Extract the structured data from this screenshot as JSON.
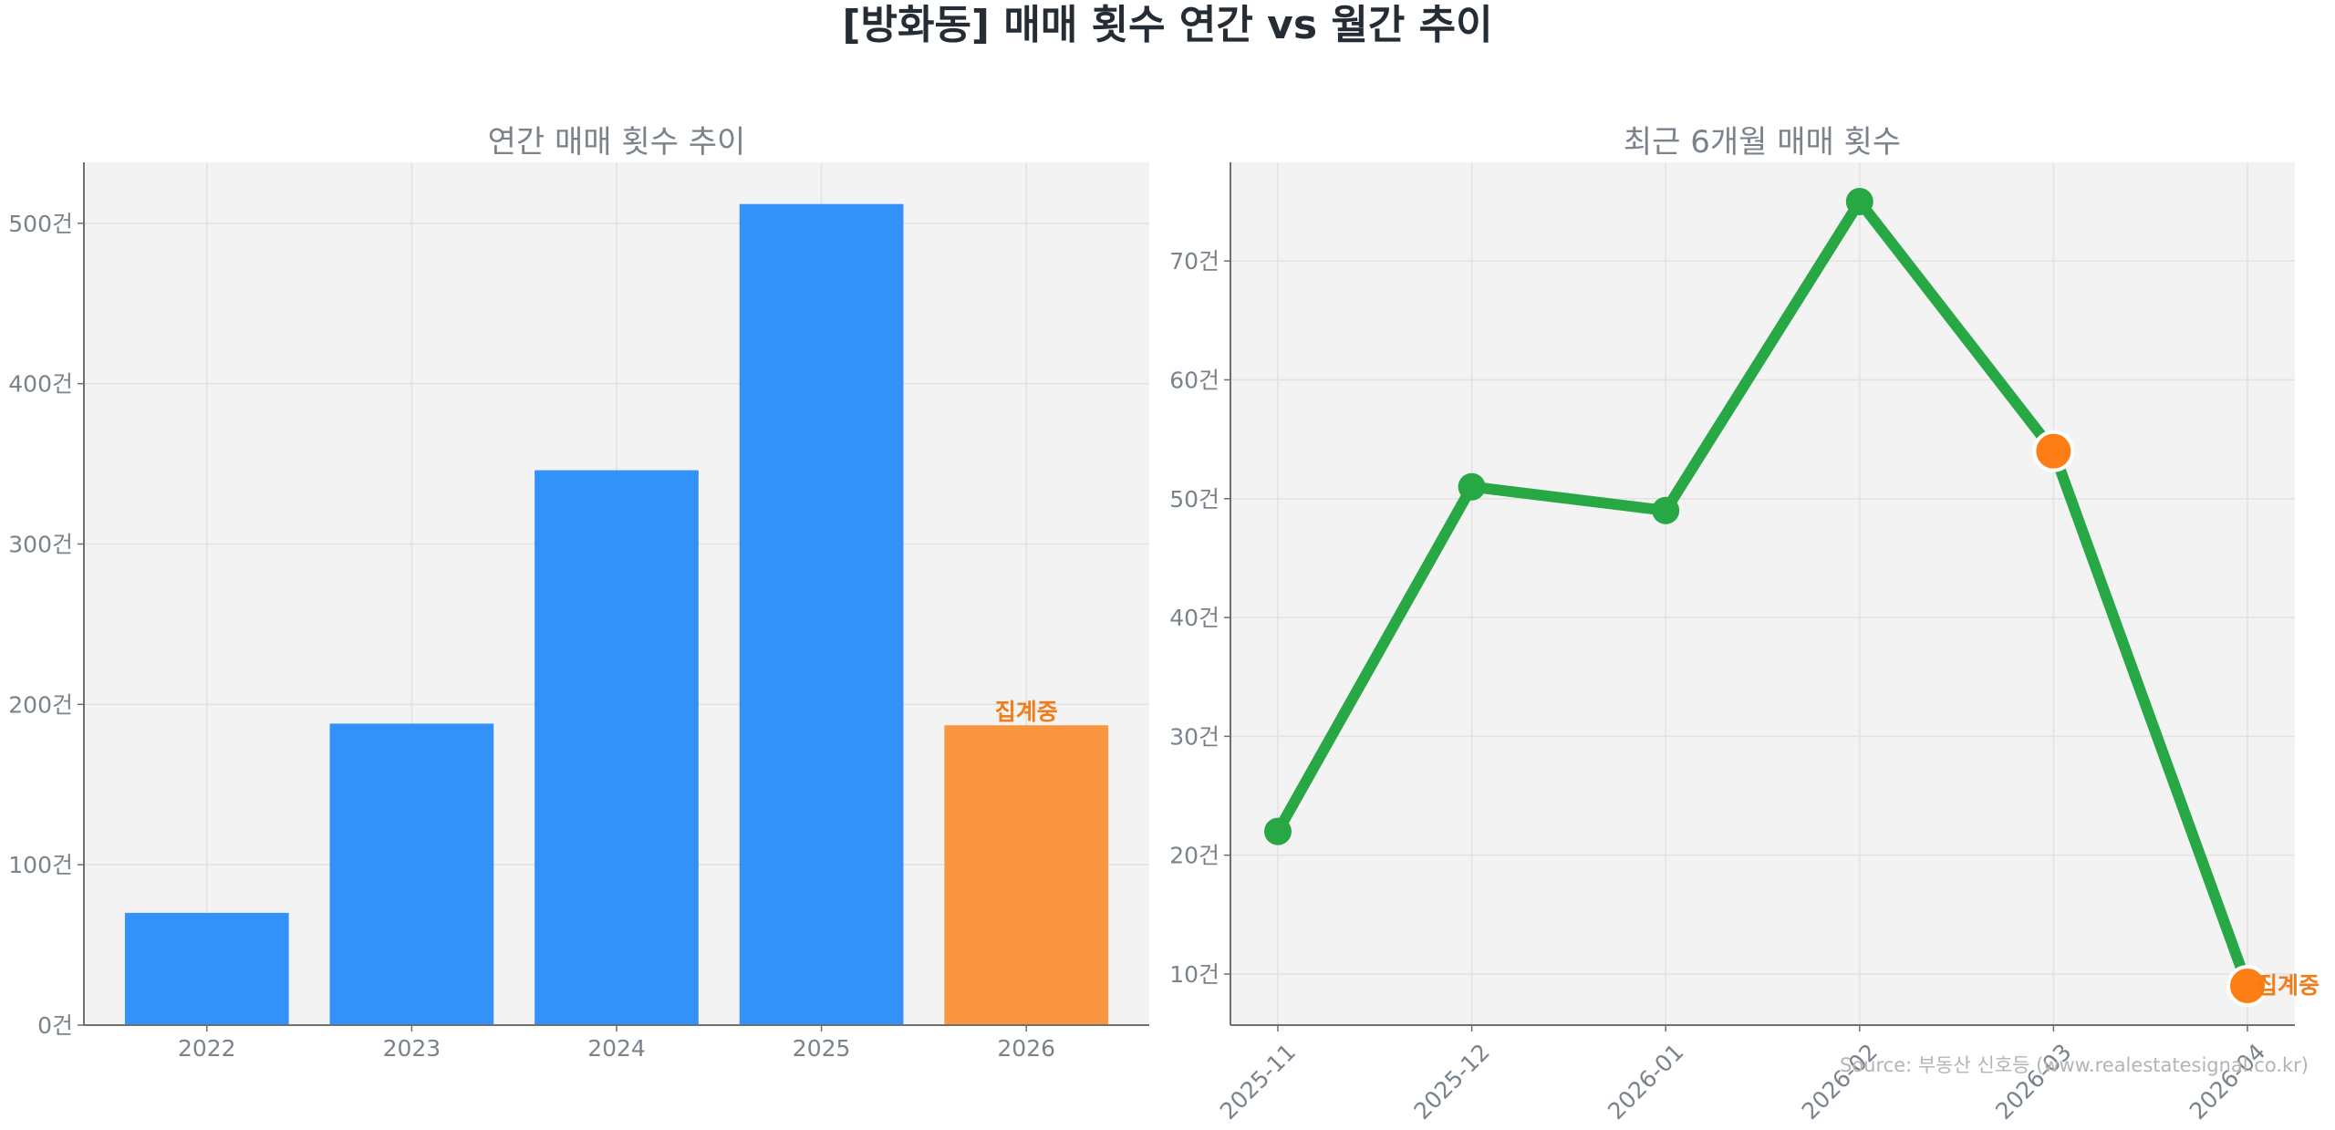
{
  "title": "[방화동] 매매 횟수 연간 vs 월간 추이",
  "source_note": "Source: 부동산 신호등 (www.realestatesignal.co.kr)",
  "colors": {
    "bar": "#3391fa",
    "highlight": "#fa9640",
    "line": "#28a745",
    "marker_highlight": "#fd7e14",
    "label_highlight": "#f07c1a",
    "panel_bg": "#f3f3f3",
    "text_muted": "#7a828c",
    "title_text": "#262c33"
  },
  "chart_data": [
    {
      "type": "bar",
      "title": "연간 매매 횟수 추이",
      "categories": [
        "2022",
        "2023",
        "2024",
        "2025",
        "2026"
      ],
      "values": [
        70,
        188,
        346,
        512,
        187
      ],
      "highlight_index": 4,
      "highlight_label": "집계중",
      "ylim": [
        0,
        538
      ],
      "yticks": [
        0,
        100,
        200,
        300,
        400,
        500
      ],
      "ytick_labels": [
        "0건",
        "100건",
        "200건",
        "300건",
        "400건",
        "500건"
      ],
      "grid": true
    },
    {
      "type": "line",
      "title": "최근 6개월 매매 횟수",
      "x": [
        "2025-11",
        "2025-12",
        "2026-01",
        "2026-02",
        "2026-03",
        "2026-04"
      ],
      "values": [
        22,
        51,
        49,
        75,
        54,
        9
      ],
      "highlight_indices": [
        4,
        5
      ],
      "highlight_label": "집계중",
      "ylim": [
        5.7,
        78.3
      ],
      "yticks": [
        10,
        20,
        30,
        40,
        50,
        60,
        70
      ],
      "ytick_labels": [
        "10건",
        "20건",
        "30건",
        "40건",
        "50건",
        "60건",
        "70건"
      ],
      "grid": true
    }
  ]
}
